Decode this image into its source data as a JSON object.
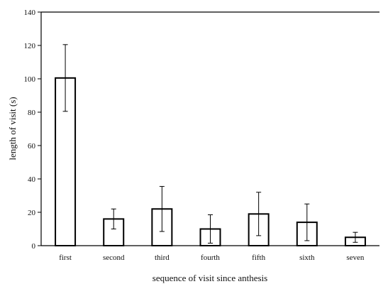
{
  "chart_data": {
    "type": "bar",
    "categories": [
      "first",
      "second",
      "third",
      "fourth",
      "fifth",
      "sixth",
      "seven"
    ],
    "values": [
      100.5,
      16,
      22,
      10,
      19,
      14,
      5
    ],
    "error": [
      20,
      6,
      13.5,
      8.5,
      13,
      11,
      3
    ],
    "xlabel": "sequence of visit since anthesis",
    "ylabel": "length of visit (s)",
    "ylim": [
      0,
      140
    ],
    "yticks": [
      0,
      20,
      40,
      60,
      80,
      100,
      120,
      140
    ],
    "grid": false,
    "legend": "none",
    "colors": {
      "bar_fill": "#ffffff",
      "bar_stroke": "#000000",
      "axis": "#000000"
    }
  }
}
